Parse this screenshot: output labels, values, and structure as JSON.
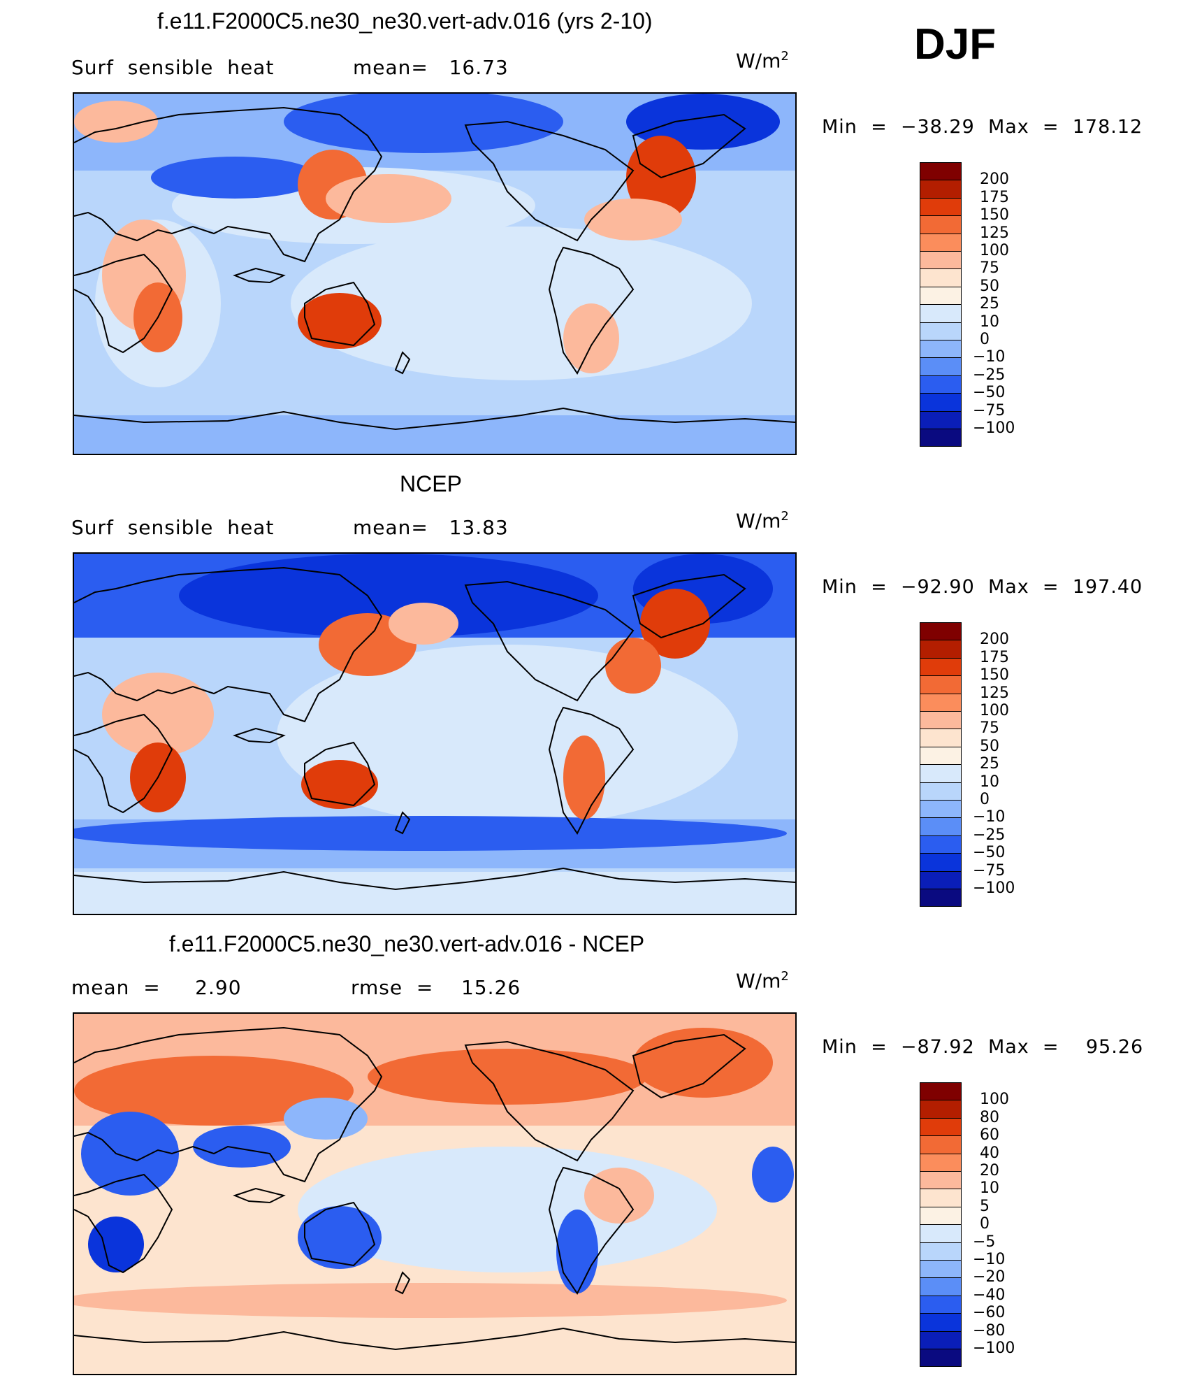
{
  "season": "DJF",
  "panels": [
    {
      "title": "f.e11.F2000C5.ne30_ne30.vert-adv.016 (yrs 2-10)",
      "left_label": "Surf  sensible  heat",
      "right_label": "mean=   16.73",
      "units": "W/m",
      "units_sup": "2",
      "minmax": "Min  =  −38.29  Max  =  178.12",
      "colorbar": [
        "200",
        "175",
        "150",
        "125",
        "100",
        "75",
        "50",
        "25",
        "10",
        "0",
        "−10",
        "−25",
        "−50",
        "−75",
        "−100"
      ]
    },
    {
      "title": "NCEP",
      "left_label": "Surf  sensible  heat",
      "right_label": "mean=   13.83",
      "units": "W/m",
      "units_sup": "2",
      "minmax": "Min  =  −92.90  Max  =  197.40",
      "colorbar": [
        "200",
        "175",
        "150",
        "125",
        "100",
        "75",
        "50",
        "25",
        "10",
        "0",
        "−10",
        "−25",
        "−50",
        "−75",
        "−100"
      ]
    },
    {
      "title": "f.e11.F2000C5.ne30_ne30.vert-adv.016 - NCEP",
      "left_label": "mean  =     2.90",
      "right_label": "rmse  =    15.26",
      "units": "W/m",
      "units_sup": "2",
      "minmax": "Min  =  −87.92  Max  =    95.26",
      "colorbar": [
        "100",
        "80",
        "60",
        "40",
        "20",
        "10",
        "5",
        "0",
        "−5",
        "−10",
        "−20",
        "−40",
        "−60",
        "−80",
        "−100"
      ]
    }
  ],
  "palette": [
    "#7f0000",
    "#b31e00",
    "#e03c0a",
    "#f26a35",
    "#fb8d5c",
    "#fcb99c",
    "#fde4cf",
    "#fcf2e4",
    "#d8e9fb",
    "#b9d6fb",
    "#8db6fb",
    "#5b8ef7",
    "#2b5df0",
    "#0a34db",
    "#0a1eb8",
    "#0a0a80"
  ],
  "map_colors": {
    "ocean_light": "#d8e9fb",
    "ocean_mid": "#b9d6fb",
    "ocean_blue": "#8db6fb",
    "cold": "#2b5df0",
    "cold_deep": "#0a34db",
    "warm_light": "#fde4cf",
    "warm": "#fcb99c",
    "hot": "#f26a35",
    "hotter": "#e03c0a",
    "coast": "#000000"
  }
}
